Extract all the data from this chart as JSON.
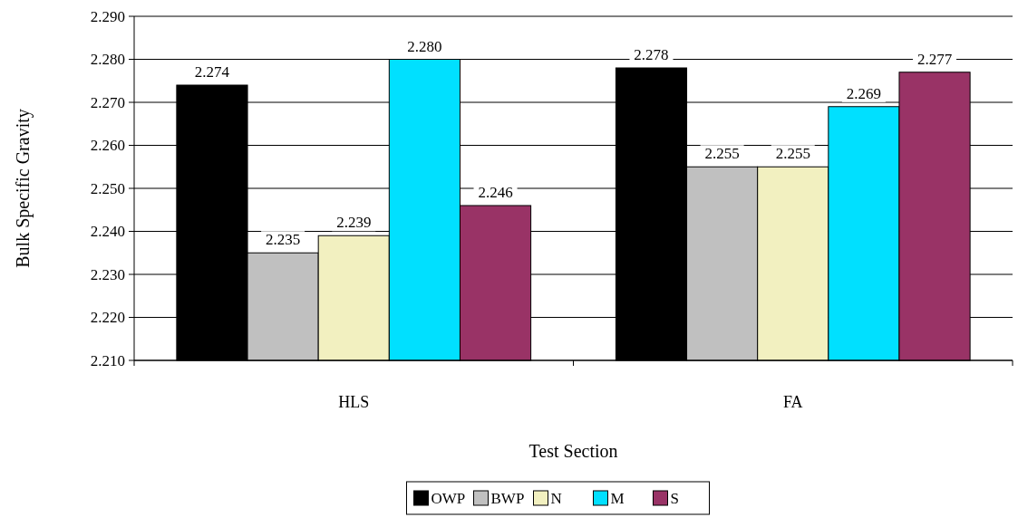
{
  "chart_data": {
    "type": "bar",
    "xlabel": "Test Section",
    "ylabel": "Bulk Specific Gravity",
    "categories": [
      "HLS",
      "FA"
    ],
    "series": [
      {
        "name": "OWP",
        "color": "#000000",
        "values": [
          2.274,
          2.278
        ],
        "value_labels": [
          "2.274",
          "2.278"
        ]
      },
      {
        "name": "BWP",
        "color": "#c0c0c0",
        "values": [
          2.235,
          2.255
        ],
        "value_labels": [
          "2.235",
          "2.255"
        ]
      },
      {
        "name": "N",
        "color": "#f2f0c0",
        "values": [
          2.239,
          2.255
        ],
        "value_labels": [
          "2.239",
          "2.255"
        ]
      },
      {
        "name": "M",
        "color": "#00e0ff",
        "values": [
          2.28,
          2.269
        ],
        "value_labels": [
          "2.280",
          "2.269"
        ]
      },
      {
        "name": "S",
        "color": "#993366",
        "values": [
          2.246,
          2.277
        ],
        "value_labels": [
          "2.246",
          "2.277"
        ]
      }
    ],
    "ylim": [
      2.21,
      2.29
    ],
    "yticks": [
      {
        "value": 2.21,
        "label": "2.210"
      },
      {
        "value": 2.22,
        "label": "2.220"
      },
      {
        "value": 2.23,
        "label": "2.230"
      },
      {
        "value": 2.24,
        "label": "2.240"
      },
      {
        "value": 2.25,
        "label": "2.250"
      },
      {
        "value": 2.26,
        "label": "2.260"
      },
      {
        "value": 2.27,
        "label": "2.270"
      },
      {
        "value": 2.28,
        "label": "2.280"
      },
      {
        "value": 2.29,
        "label": "2.290"
      }
    ],
    "grid": "y",
    "legend": "bottom"
  }
}
